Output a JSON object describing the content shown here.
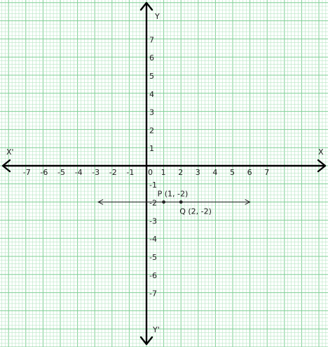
{
  "axes": {
    "x_label": "X",
    "x_neg_label": "X'",
    "y_label": "Y",
    "y_neg_label": "Y'",
    "origin_label": "0",
    "x_range": [
      -7,
      7
    ],
    "y_range": [
      -7,
      7
    ]
  },
  "x_ticks": [
    {
      "v": -7,
      "t": "-7"
    },
    {
      "v": -6,
      "t": "-6"
    },
    {
      "v": -5,
      "t": "-5"
    },
    {
      "v": -4,
      "t": "-4"
    },
    {
      "v": -3,
      "t": "-3"
    },
    {
      "v": -2,
      "t": "-2"
    },
    {
      "v": -1,
      "t": "-1"
    },
    {
      "v": 1,
      "t": "1"
    },
    {
      "v": 2,
      "t": "2"
    },
    {
      "v": 3,
      "t": "3"
    },
    {
      "v": 4,
      "t": "4"
    },
    {
      "v": 5,
      "t": "5"
    },
    {
      "v": 6,
      "t": "6"
    },
    {
      "v": 7,
      "t": "7"
    }
  ],
  "y_ticks": [
    {
      "v": 7,
      "t": "7"
    },
    {
      "v": 6,
      "t": "6"
    },
    {
      "v": 5,
      "t": "5"
    },
    {
      "v": 4,
      "t": "4"
    },
    {
      "v": 3,
      "t": "3"
    },
    {
      "v": 2,
      "t": "2"
    },
    {
      "v": 1,
      "t": "1"
    },
    {
      "v": -1,
      "t": "-1"
    },
    {
      "v": -2,
      "t": "-2"
    },
    {
      "v": -3,
      "t": "-3"
    },
    {
      "v": -4,
      "t": "-4"
    },
    {
      "v": -5,
      "t": "-5"
    },
    {
      "v": -6,
      "t": "-6"
    },
    {
      "v": -7,
      "t": "-7"
    }
  ],
  "points": [
    {
      "name": "P",
      "x": 1,
      "y": -2,
      "label": "P (1, -2)"
    },
    {
      "name": "Q",
      "x": 2,
      "y": -2,
      "label": "Q (2, -2)"
    }
  ],
  "line": {
    "y": -2,
    "x_from": -2.8,
    "x_to": 6.0
  },
  "colors": {
    "grid_minor": "#b8e6c4",
    "grid_major": "#7fcf95",
    "axis": "#000000",
    "line": "#222222",
    "text": "#1a1a1a"
  }
}
